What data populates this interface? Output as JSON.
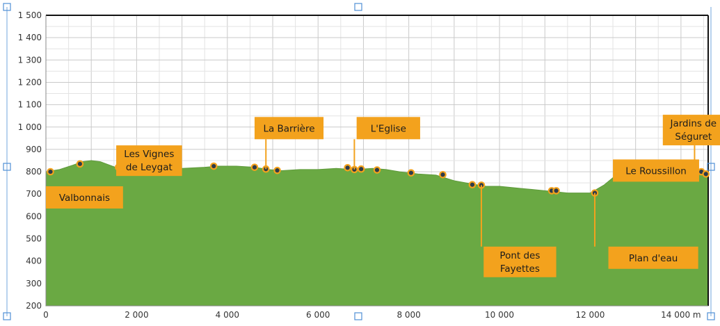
{
  "chart_data": {
    "type": "area",
    "title": "",
    "xlabel": "",
    "ylabel": "",
    "xlim": [
      0,
      14600
    ],
    "ylim": [
      200,
      1500
    ],
    "grid": true,
    "x_ticks": [
      {
        "value": 0,
        "label": "0"
      },
      {
        "value": 2000,
        "label": "2 000"
      },
      {
        "value": 4000,
        "label": "4 000"
      },
      {
        "value": 6000,
        "label": "6 000"
      },
      {
        "value": 8000,
        "label": "8 000"
      },
      {
        "value": 10000,
        "label": "10 000"
      },
      {
        "value": 12000,
        "label": "12 000"
      },
      {
        "value": 14000,
        "label": "14 000 m"
      }
    ],
    "y_ticks": [
      {
        "value": 200,
        "label": "200"
      },
      {
        "value": 300,
        "label": "300"
      },
      {
        "value": 400,
        "label": "400"
      },
      {
        "value": 500,
        "label": "500"
      },
      {
        "value": 600,
        "label": "600"
      },
      {
        "value": 700,
        "label": "700"
      },
      {
        "value": 800,
        "label": "800"
      },
      {
        "value": 900,
        "label": "900"
      },
      {
        "value": 1000,
        "label": "1 000"
      },
      {
        "value": 1100,
        "label": "1 100"
      },
      {
        "value": 1200,
        "label": "1 200"
      },
      {
        "value": 1300,
        "label": "1 300"
      },
      {
        "value": 1400,
        "label": "1 400"
      },
      {
        "value": 1500,
        "label": "1 500"
      }
    ],
    "series": [
      {
        "name": "",
        "color": "#6aa943",
        "x": [
          0,
          300,
          600,
          800,
          1000,
          1200,
          1400,
          1600,
          2000,
          2500,
          3000,
          3500,
          3800,
          4200,
          4600,
          4900,
          5200,
          5600,
          6000,
          6400,
          6800,
          7200,
          7500,
          7800,
          8200,
          8600,
          9000,
          9400,
          9700,
          10000,
          10500,
          11000,
          11500,
          12000,
          12300,
          12600,
          13000,
          13300,
          13600,
          13900,
          14200,
          14400,
          14600
        ],
        "y": [
          800,
          810,
          830,
          845,
          850,
          845,
          830,
          815,
          810,
          805,
          815,
          820,
          825,
          825,
          820,
          810,
          805,
          810,
          810,
          815,
          810,
          815,
          810,
          800,
          790,
          785,
          760,
          745,
          735,
          735,
          725,
          715,
          705,
          705,
          740,
          790,
          820,
          820,
          830,
          815,
          815,
          800,
          785
        ]
      }
    ],
    "points": [
      {
        "x": 100,
        "y": 800
      },
      {
        "x": 750,
        "y": 835
      },
      {
        "x": 1600,
        "y": 820
      },
      {
        "x": 3700,
        "y": 825
      },
      {
        "x": 4600,
        "y": 820
      },
      {
        "x": 4850,
        "y": 812
      },
      {
        "x": 5100,
        "y": 806
      },
      {
        "x": 6650,
        "y": 818
      },
      {
        "x": 6800,
        "y": 810
      },
      {
        "x": 6950,
        "y": 812
      },
      {
        "x": 7300,
        "y": 808
      },
      {
        "x": 8050,
        "y": 795
      },
      {
        "x": 8750,
        "y": 787
      },
      {
        "x": 9400,
        "y": 742
      },
      {
        "x": 9600,
        "y": 740
      },
      {
        "x": 11150,
        "y": 715
      },
      {
        "x": 11250,
        "y": 715
      },
      {
        "x": 12100,
        "y": 705
      },
      {
        "x": 13550,
        "y": 825
      },
      {
        "x": 14300,
        "y": 810
      },
      {
        "x": 14450,
        "y": 800
      },
      {
        "x": 14550,
        "y": 790
      }
    ],
    "annotations": [
      {
        "text": [
          "Valbonnais"
        ],
        "x": 100,
        "y": 800,
        "box": {
          "x": 0,
          "y": 735,
          "w": 1700
        },
        "leader": false
      },
      {
        "text": [
          "Les Vignes",
          "de Leygat"
        ],
        "x": 1600,
        "y": 820,
        "box": {
          "x": 1550,
          "y": 918,
          "w": 1450
        },
        "leader": false
      },
      {
        "text": [
          "La Barrière"
        ],
        "x": 4850,
        "y": 812,
        "box": {
          "x": 4600,
          "y": 1045,
          "w": 1520
        },
        "leader": true
      },
      {
        "text": [
          "L'Eglise"
        ],
        "x": 6800,
        "y": 810,
        "box": {
          "x": 6850,
          "y": 1045,
          "w": 1400
        },
        "leader": true
      },
      {
        "text": [
          "Pont des",
          "Fayettes"
        ],
        "x": 9600,
        "y": 740,
        "box": {
          "x": 9650,
          "y": 465,
          "w": 1600
        },
        "leader": true
      },
      {
        "text": [
          "Le Roussillon"
        ],
        "x": 13550,
        "y": 825,
        "box": {
          "x": 12500,
          "y": 855,
          "w": 1900
        },
        "leader": false
      },
      {
        "text": [
          "Plan d'eau"
        ],
        "x": 12100,
        "y": 705,
        "box": {
          "x": 12400,
          "y": 465,
          "w": 1980
        },
        "leader": true
      },
      {
        "text": [
          "Jardins de",
          "Séguret"
        ],
        "x": 14300,
        "y": 810,
        "box": {
          "x": 13600,
          "y": 1055,
          "w": 1350
        },
        "leader": true
      }
    ]
  }
}
